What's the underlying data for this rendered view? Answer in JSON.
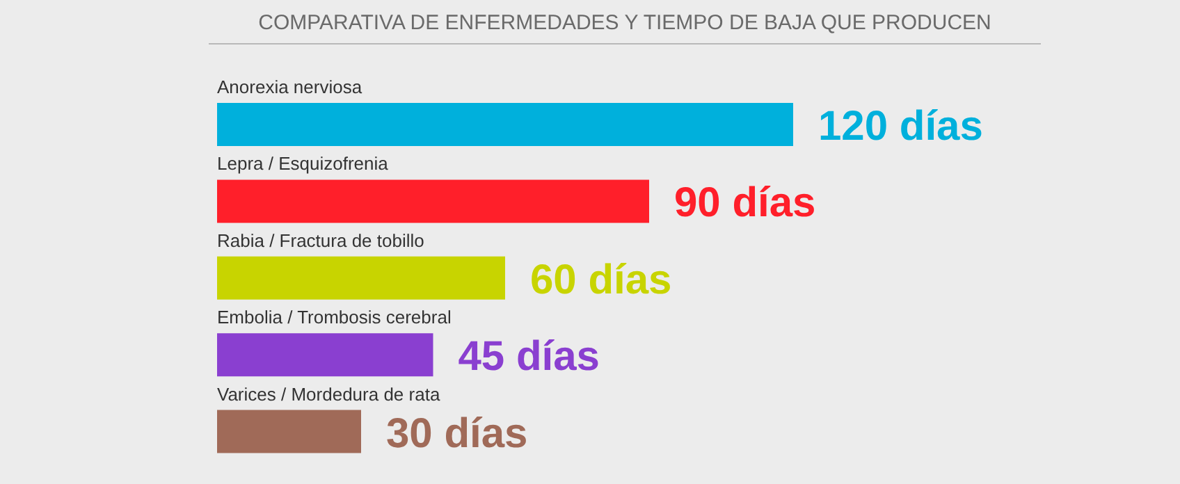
{
  "chart_data": {
    "type": "bar",
    "orientation": "horizontal",
    "title": "COMPARATIVA DE ENFERMEDADES Y TIEMPO DE BAJA QUE PRODUCEN",
    "categories": [
      "Anorexia nerviosa",
      "Lepra / Esquizofrenia",
      "Rabia / Fractura de tobillo",
      "Embolia / Trombosis cerebral",
      "Varices / Mordedura de rata"
    ],
    "values": [
      120,
      90,
      60,
      45,
      30
    ],
    "colors": [
      "#00b0dc",
      "#ff1f2a",
      "#c8d400",
      "#8a3fd0",
      "#a06a58"
    ],
    "value_labels": [
      "120 días",
      "90 días",
      "60 días",
      "45 días",
      "30 días"
    ]
  }
}
